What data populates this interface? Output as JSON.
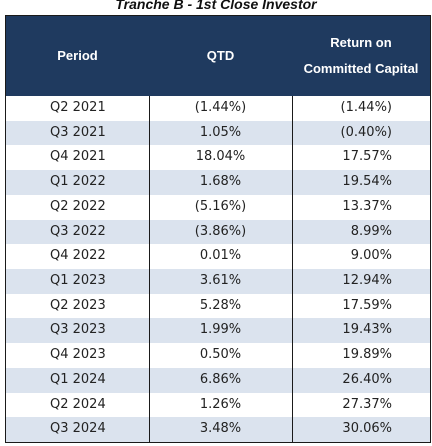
{
  "title": "Tranche B - 1st Close Investor",
  "header": {
    "period": "Period",
    "qtd": "QTD",
    "roc_line1": "Return on",
    "roc_line2": "Committed Capital"
  },
  "colors": {
    "header_bg": "#1f3a5f",
    "header_text": "#ffffff",
    "row_stripe": "#dbe3ee"
  },
  "rows": [
    {
      "period": "Q2 2021",
      "qtd": "(1.44%)",
      "roc": "(1.44%)"
    },
    {
      "period": "Q3 2021",
      "qtd": "1.05%",
      "roc": "(0.40%)"
    },
    {
      "period": "Q4 2021",
      "qtd": "18.04%",
      "roc": "17.57%"
    },
    {
      "period": "Q1 2022",
      "qtd": "1.68%",
      "roc": "19.54%"
    },
    {
      "period": "Q2 2022",
      "qtd": "(5.16%)",
      "roc": "13.37%"
    },
    {
      "period": "Q3 2022",
      "qtd": "(3.86%)",
      "roc": "8.99%"
    },
    {
      "period": "Q4 2022",
      "qtd": "0.01%",
      "roc": "9.00%"
    },
    {
      "period": "Q1 2023",
      "qtd": "3.61%",
      "roc": "12.94%"
    },
    {
      "period": "Q2 2023",
      "qtd": "5.28%",
      "roc": "17.59%"
    },
    {
      "period": "Q3 2023",
      "qtd": "1.99%",
      "roc": "19.43%"
    },
    {
      "period": "Q4 2023",
      "qtd": "0.50%",
      "roc": "19.89%"
    },
    {
      "period": "Q1 2024",
      "qtd": "6.86%",
      "roc": "26.40%"
    },
    {
      "period": "Q2 2024",
      "qtd": "1.26%",
      "roc": "27.37%"
    },
    {
      "period": "Q3 2024",
      "qtd": "3.48%",
      "roc": "30.06%"
    }
  ]
}
